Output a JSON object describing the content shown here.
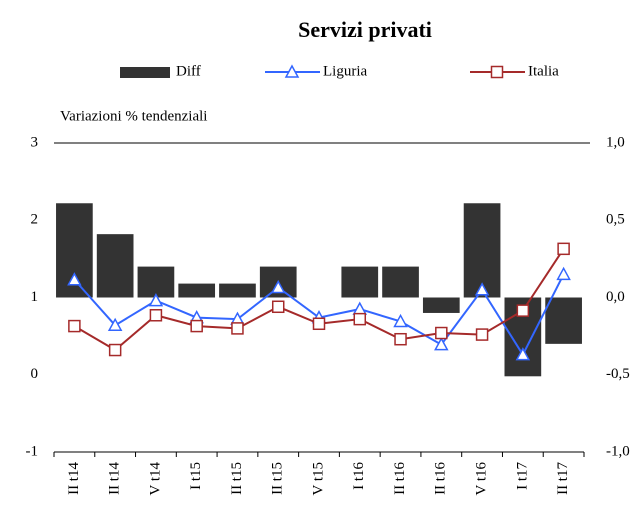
{
  "chart_data": {
    "type": "bar-line",
    "title": "Servizi privati",
    "annotation": "Variazioni % tendenziali",
    "categories": [
      "II t14",
      "II t14",
      "V t14",
      "I t15",
      "II t15",
      "II t15",
      "V t15",
      "I t16",
      "II t16",
      "II t16",
      "V t16",
      "I t17",
      "II t17"
    ],
    "series": [
      {
        "name": "Diff",
        "type": "bar",
        "axis": "y2",
        "color": "#333333",
        "values": [
          0.61,
          0.41,
          0.2,
          0.09,
          0.09,
          0.2,
          0,
          0.2,
          0.2,
          -0.1,
          0.61,
          -0.51,
          -0.3
        ]
      },
      {
        "name": "Liguria",
        "type": "line",
        "marker": "triangle",
        "color": "#3366ff",
        "values": [
          1.23,
          0.64,
          0.96,
          0.74,
          0.72,
          1.13,
          0.74,
          0.85,
          0.69,
          0.39,
          1.1,
          0.26,
          1.3
        ]
      },
      {
        "name": "Italia",
        "type": "line",
        "marker": "square",
        "color": "#a52a2a",
        "values": [
          0.63,
          0.32,
          0.77,
          0.63,
          0.6,
          0.88,
          0.66,
          0.72,
          0.46,
          0.54,
          0.52,
          0.83,
          1.63
        ]
      }
    ],
    "ylim": [
      -1,
      3
    ],
    "yticks": [
      -1,
      0,
      1,
      2,
      3
    ],
    "y2lim": [
      -1,
      1
    ],
    "y2ticks": [
      {
        "value": -1,
        "label": "-1,0"
      },
      {
        "value": -0.5,
        "label": "-0,5"
      },
      {
        "value": 0,
        "label": "0,0"
      },
      {
        "value": 0.5,
        "label": "0,5"
      },
      {
        "value": 1,
        "label": "1,0"
      }
    ]
  }
}
